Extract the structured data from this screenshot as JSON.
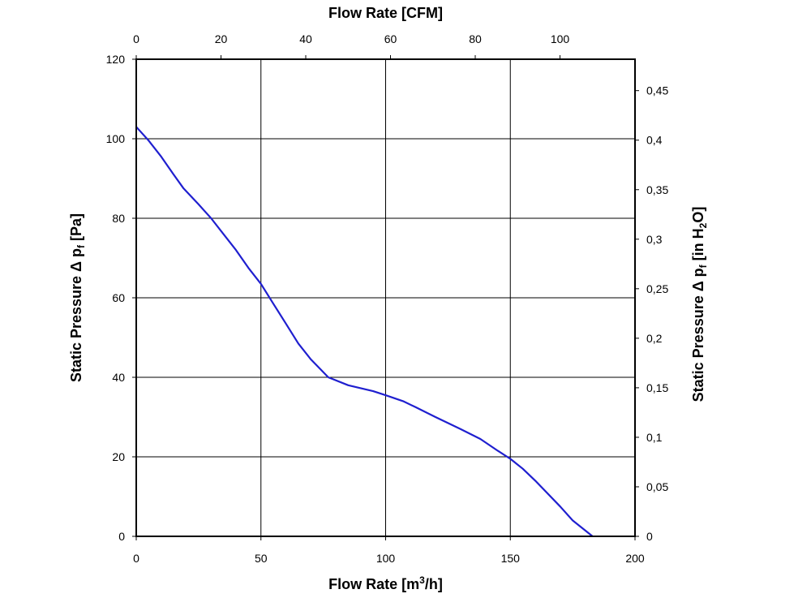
{
  "chart_data": {
    "type": "line",
    "xlabel_top": "Flow Rate [CFM]",
    "xlabel_bottom": {
      "pre": "Flow Rate [m",
      "sup": "3",
      "post": "/h]"
    },
    "ylabel_left": {
      "pre": "Static Pressure Δ p",
      "sub": "f",
      "post": " [Pa]"
    },
    "ylabel_right": {
      "pre": "Static Pressure Δ p",
      "sub": "f",
      "mid": " [in H",
      "sub2": "2",
      "post": "O]"
    },
    "x_bottom": {
      "min": 0,
      "max": 200,
      "ticks": [
        0,
        50,
        100,
        150,
        200
      ],
      "tick_labels": [
        "0",
        "50",
        "100",
        "150",
        "200"
      ]
    },
    "x_top": {
      "min": 0,
      "max": 117.7,
      "ticks": [
        0,
        20,
        40,
        60,
        80,
        100
      ],
      "tick_labels": [
        "0",
        "20",
        "40",
        "60",
        "80",
        "100"
      ]
    },
    "y_left": {
      "min": 0,
      "max": 120,
      "ticks": [
        0,
        20,
        40,
        60,
        80,
        100,
        120
      ],
      "tick_labels": [
        "0",
        "20",
        "40",
        "60",
        "80",
        "100",
        "120"
      ]
    },
    "y_right": {
      "min": 0,
      "max": 0.4817,
      "ticks": [
        0,
        0.05,
        0.1,
        0.15,
        0.2,
        0.25,
        0.3,
        0.35,
        0.4,
        0.45
      ],
      "tick_labels": [
        "0",
        "0,05",
        "0,1",
        "0,15",
        "0,2",
        "0,25",
        "0,3",
        "0,35",
        "0,4",
        "0,45"
      ]
    },
    "grid": true,
    "series": [
      {
        "color": "#1f1fcf",
        "x": [
          0,
          5,
          10,
          15,
          19,
          25,
          30,
          35,
          40,
          45,
          50,
          55,
          60,
          65,
          70,
          77,
          85,
          95,
          100,
          107,
          112,
          120,
          130,
          138,
          145,
          150,
          155,
          160,
          170,
          175,
          183
        ],
        "y": [
          103,
          99.5,
          95.5,
          91,
          87.5,
          83.5,
          80,
          76,
          72,
          67.5,
          63.5,
          58.5,
          53.5,
          48.5,
          44.5,
          40,
          38,
          36.5,
          35.5,
          34,
          32.5,
          30,
          27,
          24.5,
          21.5,
          19.5,
          17,
          14,
          7.5,
          4,
          0
        ]
      }
    ]
  }
}
